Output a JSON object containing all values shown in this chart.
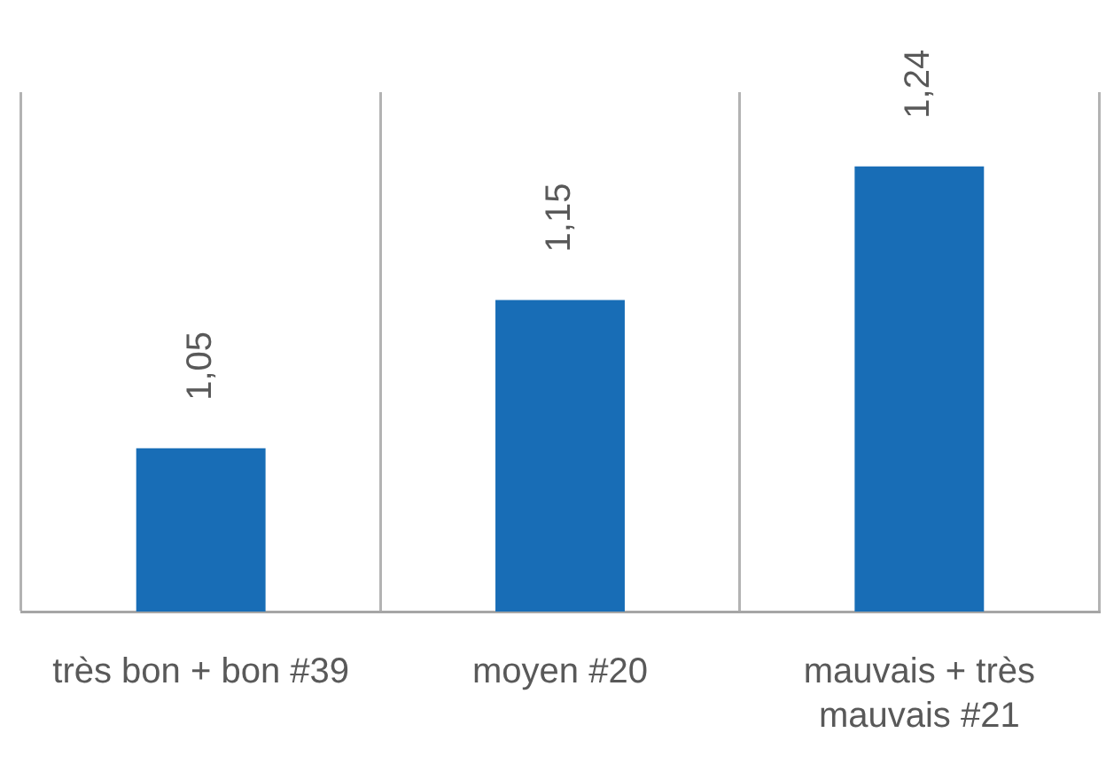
{
  "chart_data": {
    "type": "bar",
    "categories": [
      "très bon + bon #39",
      "moyen #20",
      "mauvais + très mauvais #21"
    ],
    "values": [
      1.05,
      1.15,
      1.24
    ],
    "color": "#186db6",
    "value_labels": [
      "1,05",
      "1,15",
      "1,24"
    ],
    "ylim": [
      0.94,
      1.29
    ],
    "grid": "x",
    "tick_labels": "x"
  }
}
